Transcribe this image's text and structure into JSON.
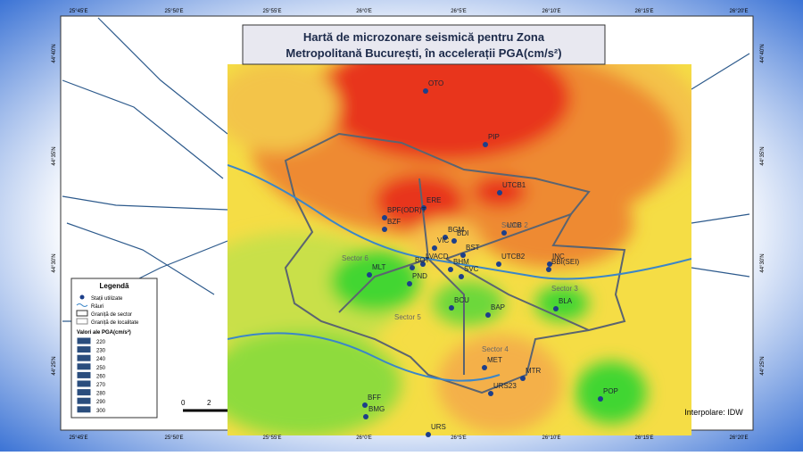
{
  "title": {
    "line1": "Hartă de microzonare seismică pentru Zona",
    "line2": "Metropolitană București, în accelerații PGA(cm/s²)"
  },
  "legend": {
    "title": "Legendă",
    "items": [
      "Stații utilizate",
      "Râuri",
      "Graniță de sector",
      "Graniță de localitate"
    ],
    "pga_title": "Valori ale PGA(cm/s²)",
    "pga_values": [
      220,
      230,
      240,
      250,
      260,
      270,
      280,
      290,
      300
    ]
  },
  "stations": [
    "OTO",
    "PIP",
    "UTCB1",
    "ERE",
    "BPF(ODR)T",
    "BZF",
    "BGM",
    "BDI",
    "UCB",
    "VIC",
    "BST",
    "LVACD",
    "BOT",
    "BHM",
    "SVC",
    "UTCB2",
    "INC",
    "BBI(SEI)",
    "MLT",
    "PND",
    "BCU",
    "BAP",
    "BLA",
    "MET",
    "MTR",
    "URS23",
    "POP",
    "BFF",
    "BMG",
    "URS"
  ],
  "sectors": [
    "Sector 6",
    "Sector 5",
    "Sector 4",
    "Sector 3",
    "Sector 2"
  ],
  "lon_labels": [
    "25°45'E",
    "25°50'E",
    "25°55'E",
    "26°0'E",
    "26°5'E",
    "26°10'E",
    "26°15'E",
    "26°20'E"
  ],
  "lat_labels": [
    "44°40'N",
    "44°35'N",
    "44°30'N",
    "44°25'N"
  ],
  "scale": [
    "0",
    "2"
  ],
  "method": "Interpolare: IDW"
}
